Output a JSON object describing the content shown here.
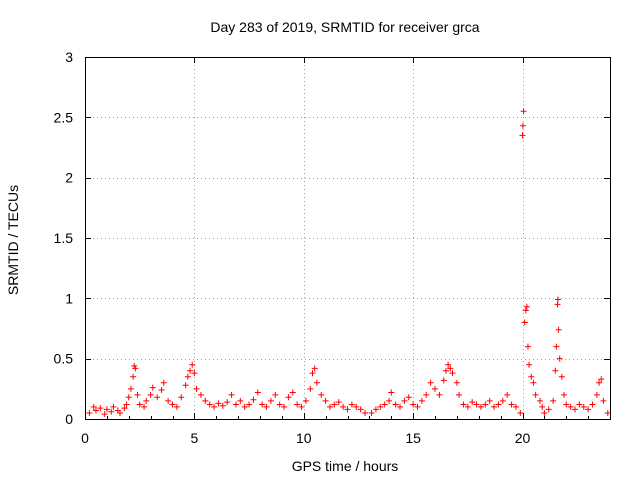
{
  "chart_data": {
    "type": "scatter",
    "title": "Day 283 of 2019, SRMTID for receiver grca",
    "xlabel": "GPS time / hours",
    "ylabel": "SRMTID / TECUs",
    "xlim": [
      0,
      24
    ],
    "ylim": [
      0,
      3
    ],
    "x_ticks": [
      0,
      5,
      10,
      15,
      20
    ],
    "x_tick_labels": [
      "0",
      "5",
      "10",
      "15",
      "20"
    ],
    "y_ticks": [
      0,
      0.5,
      1,
      1.5,
      2,
      2.5,
      3
    ],
    "y_tick_labels": [
      "0",
      "0.5",
      "1",
      "1.5",
      "2",
      "2.5",
      "3"
    ],
    "grid": true,
    "marker": "plus",
    "color": "#ff0000",
    "series": [
      {
        "name": "SRMTID",
        "points": [
          [
            0.2,
            0.05
          ],
          [
            0.4,
            0.1
          ],
          [
            0.5,
            0.07
          ],
          [
            0.7,
            0.09
          ],
          [
            0.9,
            0.04
          ],
          [
            1.0,
            0.08
          ],
          [
            1.2,
            0.06
          ],
          [
            1.3,
            0.1
          ],
          [
            1.5,
            0.07
          ],
          [
            1.6,
            0.05
          ],
          [
            1.8,
            0.09
          ],
          [
            1.9,
            0.12
          ],
          [
            2.0,
            0.18
          ],
          [
            2.1,
            0.25
          ],
          [
            2.2,
            0.35
          ],
          [
            2.25,
            0.44
          ],
          [
            2.3,
            0.42
          ],
          [
            2.4,
            0.2
          ],
          [
            2.5,
            0.12
          ],
          [
            2.7,
            0.1
          ],
          [
            2.8,
            0.15
          ],
          [
            3.0,
            0.2
          ],
          [
            3.1,
            0.26
          ],
          [
            3.3,
            0.18
          ],
          [
            3.5,
            0.24
          ],
          [
            3.6,
            0.3
          ],
          [
            3.8,
            0.15
          ],
          [
            4.0,
            0.12
          ],
          [
            4.2,
            0.1
          ],
          [
            4.4,
            0.18
          ],
          [
            4.6,
            0.28
          ],
          [
            4.7,
            0.35
          ],
          [
            4.8,
            0.4
          ],
          [
            4.9,
            0.45
          ],
          [
            5.0,
            0.38
          ],
          [
            5.1,
            0.25
          ],
          [
            5.3,
            0.2
          ],
          [
            5.5,
            0.15
          ],
          [
            5.7,
            0.12
          ],
          [
            5.9,
            0.1
          ],
          [
            6.1,
            0.13
          ],
          [
            6.3,
            0.11
          ],
          [
            6.5,
            0.14
          ],
          [
            6.7,
            0.2
          ],
          [
            6.9,
            0.12
          ],
          [
            7.1,
            0.15
          ],
          [
            7.3,
            0.1
          ],
          [
            7.5,
            0.12
          ],
          [
            7.7,
            0.16
          ],
          [
            7.9,
            0.22
          ],
          [
            8.1,
            0.12
          ],
          [
            8.3,
            0.1
          ],
          [
            8.5,
            0.15
          ],
          [
            8.7,
            0.2
          ],
          [
            8.9,
            0.12
          ],
          [
            9.1,
            0.1
          ],
          [
            9.3,
            0.18
          ],
          [
            9.5,
            0.22
          ],
          [
            9.7,
            0.12
          ],
          [
            9.9,
            0.1
          ],
          [
            10.1,
            0.15
          ],
          [
            10.3,
            0.25
          ],
          [
            10.4,
            0.38
          ],
          [
            10.5,
            0.42
          ],
          [
            10.6,
            0.3
          ],
          [
            10.8,
            0.2
          ],
          [
            11.0,
            0.15
          ],
          [
            11.2,
            0.1
          ],
          [
            11.4,
            0.12
          ],
          [
            11.6,
            0.14
          ],
          [
            11.8,
            0.1
          ],
          [
            12.0,
            0.08
          ],
          [
            12.2,
            0.12
          ],
          [
            12.4,
            0.1
          ],
          [
            12.6,
            0.08
          ],
          [
            12.8,
            0.05
          ],
          [
            13.1,
            0.05
          ],
          [
            13.3,
            0.08
          ],
          [
            13.5,
            0.1
          ],
          [
            13.7,
            0.12
          ],
          [
            13.9,
            0.15
          ],
          [
            14.0,
            0.22
          ],
          [
            14.2,
            0.12
          ],
          [
            14.4,
            0.1
          ],
          [
            14.6,
            0.15
          ],
          [
            14.8,
            0.18
          ],
          [
            15.0,
            0.12
          ],
          [
            15.2,
            0.1
          ],
          [
            15.4,
            0.15
          ],
          [
            15.6,
            0.2
          ],
          [
            15.8,
            0.3
          ],
          [
            16.0,
            0.25
          ],
          [
            16.2,
            0.2
          ],
          [
            16.4,
            0.32
          ],
          [
            16.5,
            0.4
          ],
          [
            16.6,
            0.45
          ],
          [
            16.7,
            0.42
          ],
          [
            16.8,
            0.38
          ],
          [
            17.0,
            0.3
          ],
          [
            17.1,
            0.2
          ],
          [
            17.3,
            0.12
          ],
          [
            17.5,
            0.1
          ],
          [
            17.7,
            0.14
          ],
          [
            17.9,
            0.12
          ],
          [
            18.1,
            0.1
          ],
          [
            18.3,
            0.12
          ],
          [
            18.5,
            0.15
          ],
          [
            18.7,
            0.1
          ],
          [
            18.9,
            0.12
          ],
          [
            19.1,
            0.15
          ],
          [
            19.3,
            0.2
          ],
          [
            19.5,
            0.12
          ],
          [
            19.7,
            0.1
          ],
          [
            19.9,
            0.05
          ],
          [
            20.0,
            2.35
          ],
          [
            20.02,
            2.43
          ],
          [
            20.05,
            2.55
          ],
          [
            20.1,
            0.8
          ],
          [
            20.15,
            0.9
          ],
          [
            20.2,
            0.93
          ],
          [
            20.25,
            0.6
          ],
          [
            20.3,
            0.45
          ],
          [
            20.4,
            0.35
          ],
          [
            20.5,
            0.3
          ],
          [
            20.6,
            0.2
          ],
          [
            20.8,
            0.15
          ],
          [
            20.9,
            0.1
          ],
          [
            21.0,
            0.05
          ],
          [
            21.2,
            0.08
          ],
          [
            21.4,
            0.15
          ],
          [
            21.5,
            0.4
          ],
          [
            21.55,
            0.6
          ],
          [
            21.6,
            0.95
          ],
          [
            21.62,
            0.99
          ],
          [
            21.65,
            0.74
          ],
          [
            21.7,
            0.5
          ],
          [
            21.8,
            0.35
          ],
          [
            21.9,
            0.2
          ],
          [
            22.0,
            0.12
          ],
          [
            22.2,
            0.1
          ],
          [
            22.4,
            0.08
          ],
          [
            22.6,
            0.12
          ],
          [
            22.8,
            0.1
          ],
          [
            23.0,
            0.08
          ],
          [
            23.2,
            0.12
          ],
          [
            23.4,
            0.2
          ],
          [
            23.5,
            0.3
          ],
          [
            23.6,
            0.33
          ],
          [
            23.7,
            0.15
          ],
          [
            23.9,
            0.05
          ]
        ]
      }
    ]
  }
}
